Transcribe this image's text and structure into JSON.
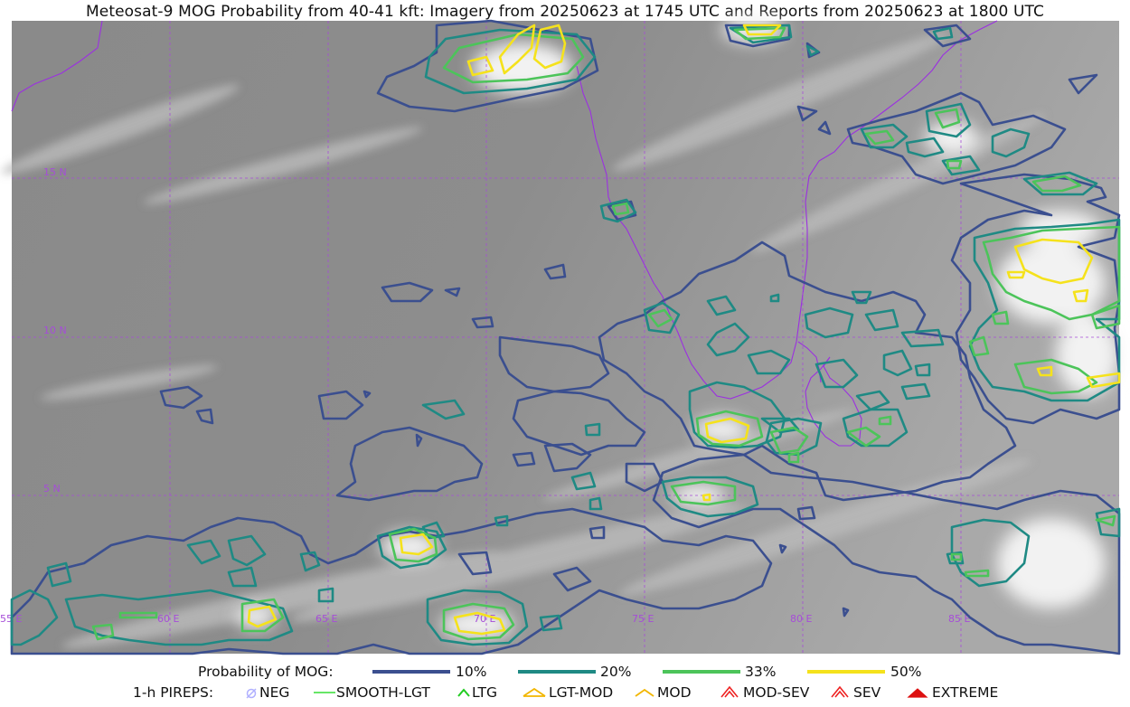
{
  "title": "Meteosat-9 MOG Probability from 40-41 kft: Imagery from 20250623 at 1745 UTC and Reports from 20250623 at 1800 UTC",
  "map": {
    "lat_labels": [
      "15 N",
      "10 N",
      "5 N"
    ],
    "lon_labels": [
      "55 E",
      "60 E",
      "65 E",
      "70 E",
      "75 E",
      "80 E",
      "85 E"
    ],
    "colors": {
      "grid": "#a64dd8",
      "coast": "#9b30e0",
      "p10": "#3b4f8f",
      "p20": "#1f8a84",
      "p33": "#4cc45a",
      "p50": "#f5e21c"
    }
  },
  "legend": {
    "probability": {
      "title": "Probability of MOG:",
      "items": [
        {
          "label": "10%",
          "color": "#3b4f8f"
        },
        {
          "label": "20%",
          "color": "#1f8a84"
        },
        {
          "label": "33%",
          "color": "#4cc45a"
        },
        {
          "label": "50%",
          "color": "#f5e21c"
        }
      ]
    },
    "pireps": {
      "title": "1-h PIREPS:",
      "items": [
        {
          "label": "NEG",
          "icon": "neg-icon",
          "color": "#b0b0ff"
        },
        {
          "label": "SMOOTH-LGT",
          "icon": "smooth-light-icon",
          "color": "#33dd33"
        },
        {
          "label": "LTG",
          "icon": "light-icon",
          "color": "#22cc22"
        },
        {
          "label": "LGT-MOD",
          "icon": "light-moderate-icon",
          "color": "#f2b600"
        },
        {
          "label": "MOD",
          "icon": "moderate-icon",
          "color": "#f2b600"
        },
        {
          "label": "MOD-SEV",
          "icon": "moderate-severe-icon",
          "color": "#ee2222"
        },
        {
          "label": "SEV",
          "icon": "severe-icon",
          "color": "#ee2222"
        },
        {
          "label": "EXTREME",
          "icon": "extreme-icon",
          "color": "#dd1111"
        }
      ]
    }
  }
}
